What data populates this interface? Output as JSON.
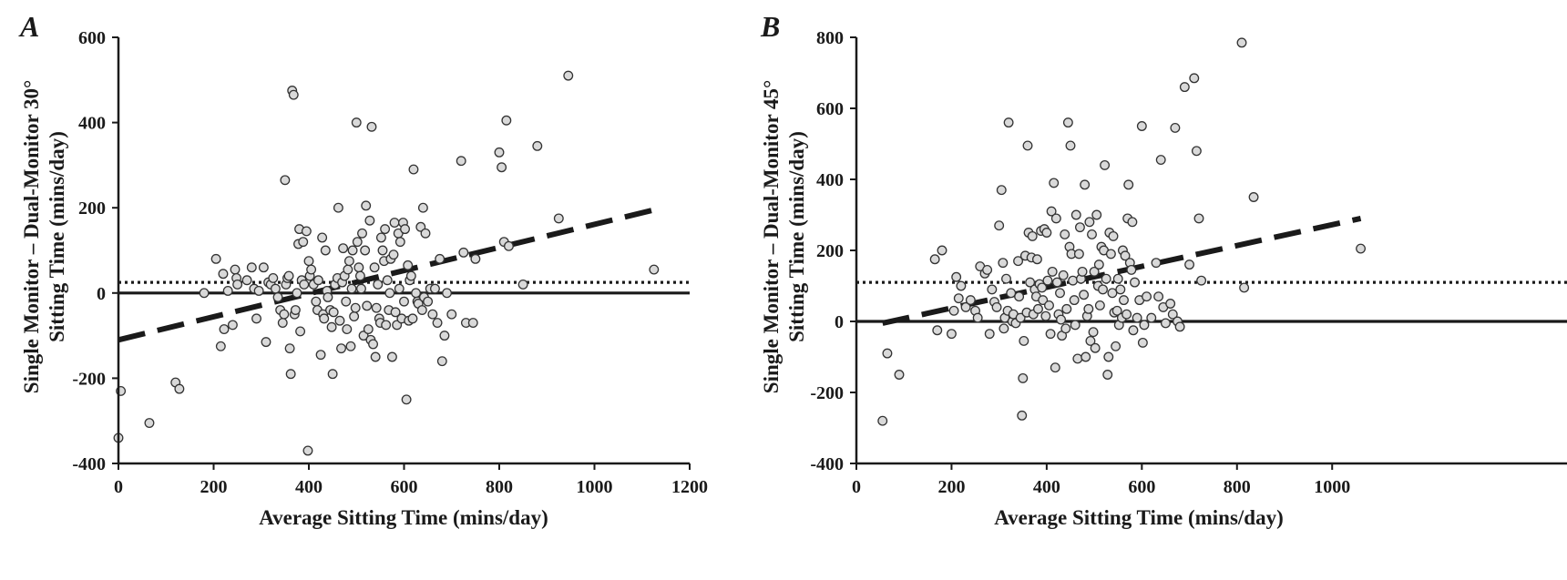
{
  "chart_data": [
    {
      "type": "scatter",
      "panel_label": "A",
      "xlabel": "Average Sitting Time (mins/day)",
      "ylabel_line1": "Single Monitor – Dual-Monitor 30°",
      "ylabel_line2": "Sitting Time (mins/day)",
      "xlim": [
        0,
        1200
      ],
      "ylim": [
        -400,
        600
      ],
      "xticks": [
        0,
        200,
        400,
        600,
        800,
        1000,
        1200
      ],
      "yticks": [
        -400,
        -200,
        0,
        200,
        400,
        600
      ],
      "mean_difference": 25,
      "fit_line": [
        [
          0,
          -110
        ],
        [
          1125,
          195
        ]
      ],
      "points": [
        [
          0,
          -340
        ],
        [
          5,
          -230
        ],
        [
          65,
          -305
        ],
        [
          120,
          -210
        ],
        [
          128,
          -225
        ],
        [
          180,
          0
        ],
        [
          205,
          80
        ],
        [
          215,
          -125
        ],
        [
          220,
          45
        ],
        [
          222,
          -85
        ],
        [
          230,
          5
        ],
        [
          240,
          -75
        ],
        [
          245,
          55
        ],
        [
          248,
          35
        ],
        [
          250,
          20
        ],
        [
          270,
          30
        ],
        [
          280,
          60
        ],
        [
          285,
          10
        ],
        [
          290,
          -60
        ],
        [
          295,
          5
        ],
        [
          305,
          60
        ],
        [
          310,
          -115
        ],
        [
          315,
          25
        ],
        [
          320,
          20
        ],
        [
          325,
          35
        ],
        [
          330,
          10
        ],
        [
          335,
          -10
        ],
        [
          340,
          -40
        ],
        [
          345,
          -70
        ],
        [
          348,
          -50
        ],
        [
          350,
          265
        ],
        [
          352,
          20
        ],
        [
          355,
          35
        ],
        [
          358,
          40
        ],
        [
          360,
          -130
        ],
        [
          362,
          -190
        ],
        [
          365,
          475
        ],
        [
          368,
          465
        ],
        [
          370,
          -50
        ],
        [
          372,
          -40
        ],
        [
          375,
          0
        ],
        [
          378,
          115
        ],
        [
          380,
          150
        ],
        [
          382,
          -90
        ],
        [
          385,
          30
        ],
        [
          388,
          120
        ],
        [
          390,
          20
        ],
        [
          395,
          145
        ],
        [
          398,
          -370
        ],
        [
          400,
          75
        ],
        [
          402,
          40
        ],
        [
          405,
          55
        ],
        [
          410,
          20
        ],
        [
          415,
          -20
        ],
        [
          418,
          -40
        ],
        [
          420,
          30
        ],
        [
          425,
          -145
        ],
        [
          428,
          130
        ],
        [
          430,
          -50
        ],
        [
          432,
          -60
        ],
        [
          435,
          100
        ],
        [
          438,
          5
        ],
        [
          440,
          -10
        ],
        [
          445,
          -40
        ],
        [
          448,
          -80
        ],
        [
          450,
          -190
        ],
        [
          452,
          -45
        ],
        [
          455,
          20
        ],
        [
          460,
          35
        ],
        [
          462,
          200
        ],
        [
          465,
          -65
        ],
        [
          468,
          -130
        ],
        [
          470,
          25
        ],
        [
          472,
          105
        ],
        [
          475,
          40
        ],
        [
          478,
          -20
        ],
        [
          480,
          -85
        ],
        [
          482,
          55
        ],
        [
          485,
          75
        ],
        [
          488,
          -125
        ],
        [
          490,
          10
        ],
        [
          492,
          100
        ],
        [
          495,
          -55
        ],
        [
          498,
          -35
        ],
        [
          500,
          400
        ],
        [
          502,
          120
        ],
        [
          505,
          60
        ],
        [
          508,
          40
        ],
        [
          510,
          10
        ],
        [
          512,
          140
        ],
        [
          515,
          -100
        ],
        [
          518,
          100
        ],
        [
          520,
          205
        ],
        [
          522,
          -30
        ],
        [
          525,
          -85
        ],
        [
          528,
          170
        ],
        [
          530,
          -110
        ],
        [
          532,
          390
        ],
        [
          535,
          -120
        ],
        [
          538,
          60
        ],
        [
          540,
          -150
        ],
        [
          542,
          -35
        ],
        [
          545,
          20
        ],
        [
          548,
          -60
        ],
        [
          550,
          -70
        ],
        [
          552,
          130
        ],
        [
          555,
          100
        ],
        [
          558,
          75
        ],
        [
          560,
          150
        ],
        [
          562,
          -75
        ],
        [
          565,
          30
        ],
        [
          568,
          -40
        ],
        [
          570,
          0
        ],
        [
          572,
          80
        ],
        [
          575,
          -150
        ],
        [
          578,
          90
        ],
        [
          580,
          165
        ],
        [
          582,
          -45
        ],
        [
          585,
          -75
        ],
        [
          588,
          140
        ],
        [
          590,
          10
        ],
        [
          592,
          120
        ],
        [
          595,
          -60
        ],
        [
          598,
          165
        ],
        [
          600,
          -20
        ],
        [
          602,
          150
        ],
        [
          605,
          -250
        ],
        [
          608,
          65
        ],
        [
          610,
          -65
        ],
        [
          612,
          30
        ],
        [
          615,
          40
        ],
        [
          618,
          -60
        ],
        [
          620,
          290
        ],
        [
          625,
          0
        ],
        [
          628,
          -20
        ],
        [
          630,
          -25
        ],
        [
          635,
          155
        ],
        [
          638,
          -40
        ],
        [
          640,
          200
        ],
        [
          642,
          -10
        ],
        [
          645,
          140
        ],
        [
          650,
          -20
        ],
        [
          655,
          10
        ],
        [
          660,
          -50
        ],
        [
          665,
          10
        ],
        [
          670,
          -70
        ],
        [
          675,
          80
        ],
        [
          680,
          -160
        ],
        [
          685,
          -100
        ],
        [
          690,
          0
        ],
        [
          700,
          -50
        ],
        [
          720,
          310
        ],
        [
          725,
          95
        ],
        [
          730,
          -70
        ],
        [
          745,
          -70
        ],
        [
          750,
          80
        ],
        [
          800,
          330
        ],
        [
          805,
          295
        ],
        [
          810,
          120
        ],
        [
          815,
          405
        ],
        [
          820,
          110
        ],
        [
          850,
          20
        ],
        [
          880,
          345
        ],
        [
          925,
          175
        ],
        [
          945,
          510
        ],
        [
          1125,
          55
        ]
      ]
    },
    {
      "type": "scatter",
      "panel_label": "B",
      "xlabel": "Average Sitting Time (mins/day)",
      "ylabel_line1": "Single Monitor – Dual-Monitor 45°",
      "ylabel_line2": "Sitting Time (mins/day)",
      "xlim": [
        0,
        1080
      ],
      "ylim": [
        -400,
        800
      ],
      "xticks": [
        0,
        200,
        400,
        600,
        800,
        1000
      ],
      "yticks": [
        -400,
        -200,
        0,
        200,
        400,
        600,
        800
      ],
      "mean_difference": 110,
      "fit_line": [
        [
          55,
          -5
        ],
        [
          1060,
          290
        ]
      ],
      "points": [
        [
          55,
          -280
        ],
        [
          65,
          -90
        ],
        [
          90,
          -150
        ],
        [
          165,
          175
        ],
        [
          170,
          -25
        ],
        [
          180,
          200
        ],
        [
          200,
          -35
        ],
        [
          205,
          30
        ],
        [
          210,
          125
        ],
        [
          215,
          65
        ],
        [
          220,
          100
        ],
        [
          230,
          40
        ],
        [
          240,
          60
        ],
        [
          250,
          30
        ],
        [
          255,
          10
        ],
        [
          260,
          155
        ],
        [
          270,
          135
        ],
        [
          275,
          145
        ],
        [
          280,
          -35
        ],
        [
          285,
          90
        ],
        [
          290,
          55
        ],
        [
          295,
          40
        ],
        [
          300,
          270
        ],
        [
          305,
          370
        ],
        [
          308,
          165
        ],
        [
          310,
          -20
        ],
        [
          312,
          10
        ],
        [
          315,
          120
        ],
        [
          318,
          30
        ],
        [
          320,
          560
        ],
        [
          325,
          80
        ],
        [
          328,
          0
        ],
        [
          330,
          20
        ],
        [
          335,
          -5
        ],
        [
          340,
          170
        ],
        [
          342,
          70
        ],
        [
          345,
          10
        ],
        [
          348,
          -265
        ],
        [
          350,
          -160
        ],
        [
          352,
          -55
        ],
        [
          355,
          185
        ],
        [
          358,
          25
        ],
        [
          360,
          495
        ],
        [
          362,
          250
        ],
        [
          365,
          110
        ],
        [
          368,
          180
        ],
        [
          370,
          240
        ],
        [
          372,
          20
        ],
        [
          375,
          90
        ],
        [
          378,
          70
        ],
        [
          380,
          175
        ],
        [
          382,
          35
        ],
        [
          385,
          105
        ],
        [
          388,
          255
        ],
        [
          390,
          95
        ],
        [
          392,
          60
        ],
        [
          395,
          260
        ],
        [
          398,
          15
        ],
        [
          400,
          250
        ],
        [
          402,
          115
        ],
        [
          405,
          45
        ],
        [
          408,
          -35
        ],
        [
          410,
          310
        ],
        [
          412,
          140
        ],
        [
          415,
          390
        ],
        [
          418,
          -130
        ],
        [
          420,
          290
        ],
        [
          422,
          110
        ],
        [
          425,
          20
        ],
        [
          428,
          80
        ],
        [
          430,
          5
        ],
        [
          432,
          -40
        ],
        [
          435,
          130
        ],
        [
          438,
          245
        ],
        [
          440,
          -20
        ],
        [
          442,
          35
        ],
        [
          445,
          560
        ],
        [
          448,
          210
        ],
        [
          450,
          495
        ],
        [
          452,
          190
        ],
        [
          455,
          115
        ],
        [
          458,
          60
        ],
        [
          460,
          -10
        ],
        [
          462,
          300
        ],
        [
          465,
          -105
        ],
        [
          468,
          190
        ],
        [
          470,
          265
        ],
        [
          472,
          120
        ],
        [
          475,
          140
        ],
        [
          478,
          75
        ],
        [
          480,
          385
        ],
        [
          482,
          -100
        ],
        [
          485,
          15
        ],
        [
          488,
          35
        ],
        [
          490,
          280
        ],
        [
          492,
          -55
        ],
        [
          495,
          245
        ],
        [
          498,
          -30
        ],
        [
          500,
          140
        ],
        [
          502,
          -75
        ],
        [
          505,
          300
        ],
        [
          508,
          100
        ],
        [
          510,
          160
        ],
        [
          512,
          45
        ],
        [
          515,
          210
        ],
        [
          518,
          90
        ],
        [
          520,
          200
        ],
        [
          522,
          440
        ],
        [
          525,
          120
        ],
        [
          528,
          -150
        ],
        [
          530,
          -100
        ],
        [
          532,
          250
        ],
        [
          535,
          190
        ],
        [
          538,
          80
        ],
        [
          540,
          240
        ],
        [
          542,
          25
        ],
        [
          545,
          -70
        ],
        [
          548,
          30
        ],
        [
          550,
          120
        ],
        [
          552,
          -10
        ],
        [
          555,
          90
        ],
        [
          558,
          10
        ],
        [
          560,
          200
        ],
        [
          562,
          60
        ],
        [
          565,
          185
        ],
        [
          568,
          20
        ],
        [
          570,
          290
        ],
        [
          572,
          385
        ],
        [
          575,
          165
        ],
        [
          578,
          145
        ],
        [
          580,
          280
        ],
        [
          582,
          -25
        ],
        [
          585,
          110
        ],
        [
          590,
          10
        ],
        [
          595,
          60
        ],
        [
          600,
          550
        ],
        [
          602,
          -60
        ],
        [
          605,
          -10
        ],
        [
          610,
          70
        ],
        [
          620,
          10
        ],
        [
          630,
          165
        ],
        [
          635,
          70
        ],
        [
          640,
          455
        ],
        [
          645,
          40
        ],
        [
          650,
          -5
        ],
        [
          660,
          50
        ],
        [
          665,
          20
        ],
        [
          670,
          545
        ],
        [
          675,
          0
        ],
        [
          680,
          -15
        ],
        [
          690,
          660
        ],
        [
          700,
          160
        ],
        [
          710,
          685
        ],
        [
          715,
          480
        ],
        [
          720,
          290
        ],
        [
          725,
          115
        ],
        [
          810,
          785
        ],
        [
          815,
          95
        ],
        [
          835,
          350
        ],
        [
          1060,
          205
        ]
      ]
    }
  ]
}
